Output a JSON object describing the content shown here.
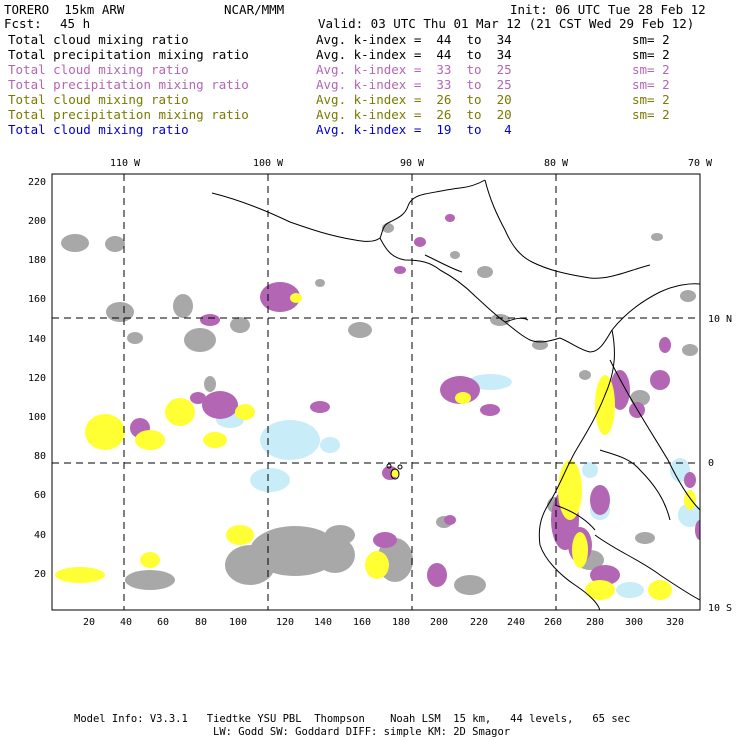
{
  "header": {
    "model": "TORERO  15km ARW",
    "org": "NCAR/MMM",
    "init": "Init: 06 UTC Tue 28 Feb 12",
    "fcst_label": "Fcst:",
    "fcst_hours": "45 h",
    "valid": "Valid: 03 UTC Thu 01 Mar 12 (21 CST Wed 29 Feb 12)"
  },
  "legend": [
    {
      "field": "Total cloud mixing ratio",
      "kindex": "Avg. k-index =  44  to  34",
      "sm": "sm= 2",
      "color": "#000000"
    },
    {
      "field": "Total precipitation mixing ratio",
      "kindex": "Avg. k-index =  44  to  34",
      "sm": "sm= 2",
      "color": "#000000"
    },
    {
      "field": "Total cloud mixing ratio",
      "kindex": "Avg. k-index =  33  to  25",
      "sm": "sm= 2",
      "color": "#b366b3"
    },
    {
      "field": "Total precipitation mixing ratio",
      "kindex": "Avg. k-index =  33  to  25",
      "sm": "sm= 2",
      "color": "#b366b3"
    },
    {
      "field": "Total cloud mixing ratio",
      "kindex": "Avg. k-index =  26  to  20",
      "sm": "sm= 2",
      "color": "#7a7a00"
    },
    {
      "field": "Total precipitation mixing ratio",
      "kindex": "Avg. k-index =  26  to  20",
      "sm": "sm= 2",
      "color": "#7a7a00"
    },
    {
      "field": "Total cloud mixing ratio",
      "kindex": "Avg. k-index =  19  to   4",
      "sm": "",
      "color": "#0000cc"
    }
  ],
  "map": {
    "lon_labels": [
      "110 W",
      "100 W",
      "90 W",
      "80 W",
      "70 W"
    ],
    "lat_labels": [
      "10 N",
      "0",
      "10 S"
    ],
    "y_grid_ticks": [
      "220",
      "200",
      "180",
      "160",
      "140",
      "120",
      "100",
      "80",
      "60",
      "40",
      "20"
    ],
    "x_grid_ticks": [
      "20",
      "40",
      "60",
      "80",
      "100",
      "120",
      "140",
      "160",
      "180",
      "200",
      "220",
      "240",
      "260",
      "280",
      "300",
      "320"
    ],
    "colors": {
      "grey": "#a8a8a8",
      "purple": "#b366b3",
      "yellow": "#ffff33",
      "cyan": "#c8ecf8"
    }
  },
  "footer": {
    "line1": "Model Info: V3.3.1   Tiedtke YSU PBL  Thompson    Noah LSM  15 km,   44 levels,   65 sec",
    "line2": "LW: Godd SW: Goddard DIFF: simple KM: 2D Smagor"
  }
}
